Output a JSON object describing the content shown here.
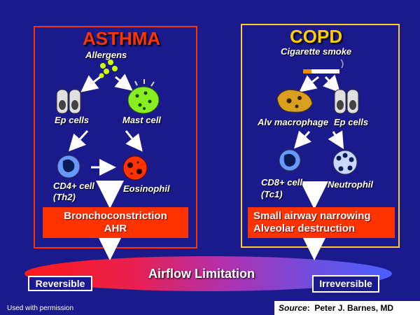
{
  "asthma": {
    "title": "ASTHMA",
    "trigger": "Allergens",
    "ep_cells": "Ep cells",
    "mast_cell": "Mast cell",
    "cd4_line1": "CD4+ cell",
    "cd4_line2": "(Th2)",
    "eosinophil": "Eosinophil",
    "outcome_line1": "Bronchoconstriction",
    "outcome_line2": "AHR"
  },
  "copd": {
    "title": "COPD",
    "trigger": "Cigarette smoke",
    "alv_macrophage": "Alv macrophage",
    "ep_cells": "Ep cells",
    "cd8_line1": "CD8+ cell",
    "cd8_line2": "(Tc1)",
    "neutrophil": "Neutrophil",
    "outcome_line1": "Small airway narrowing",
    "outcome_line2": "Alveolar destruction"
  },
  "airflow": {
    "label": "Airflow Limitation",
    "left": "Reversible",
    "right": "Irreversible"
  },
  "footer": {
    "permission": "Used with permission",
    "source_label": "Source",
    "source_name": "Peter J. Barnes, MD"
  },
  "colors": {
    "background": "#1a1a8c",
    "asthma_border": "#ff3300",
    "copd_border": "#ffcc33",
    "asthma_title": "#ff3300",
    "copd_title": "#ffcc00",
    "outcome_box": "#ff3300"
  }
}
